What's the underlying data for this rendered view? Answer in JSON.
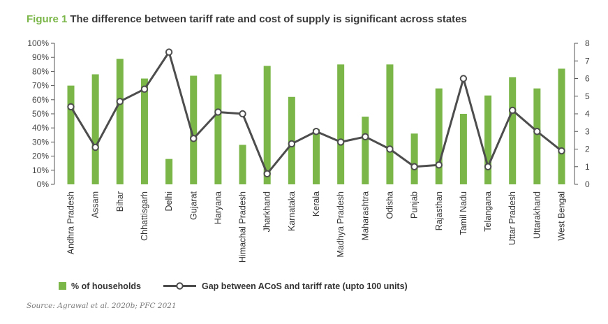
{
  "figure": {
    "label": "Figure 1",
    "title": "The difference between tariff rate and cost of supply is significant across states",
    "source": "Source: Agrawal et al. 2020b; PFC 2021"
  },
  "colors": {
    "bar": "#7ab648",
    "line": "#4d4d4d",
    "axis": "#555555",
    "accent": "#7ab648"
  },
  "chart_data": {
    "type": "bar+line",
    "title": "The difference between tariff rate and cost of supply is significant across states",
    "categories": [
      "Andhra Pradesh",
      "Assam",
      "Bihar",
      "Chhattisgarh",
      "Delhi",
      "Gujarat",
      "Haryana",
      "Himachal Pradesh",
      "Jharkhand",
      "Karnataka",
      "Kerala",
      "Madhya Pradesh",
      "Maharashtra",
      "Odisha",
      "Punjab",
      "Rajasthan",
      "Tamil Nadu",
      "Telangana",
      "Uttar Pradesh",
      "Uttarakhand",
      "West Bengal"
    ],
    "series": [
      {
        "name": "% of households",
        "type": "bar",
        "axis": "left",
        "values": [
          70,
          78,
          89,
          75,
          18,
          77,
          78,
          28,
          84,
          62,
          39,
          85,
          48,
          85,
          36,
          68,
          50,
          63,
          76,
          68,
          82
        ]
      },
      {
        "name": "Gap between ACoS and tariff rate (upto 100 units)",
        "type": "line",
        "axis": "right",
        "values": [
          4.4,
          2.1,
          4.7,
          5.4,
          7.5,
          2.6,
          4.1,
          4.0,
          0.6,
          2.3,
          3.0,
          2.4,
          2.7,
          2.0,
          1.0,
          1.1,
          6.0,
          1.0,
          4.2,
          3.0,
          1.9
        ]
      }
    ],
    "y_left": {
      "range": [
        0,
        100
      ],
      "ticks": [
        "0%",
        "10%",
        "20%",
        "30%",
        "40%",
        "50%",
        "60%",
        "70%",
        "80%",
        "90%",
        "100%"
      ]
    },
    "y_right": {
      "range": [
        0,
        8
      ],
      "ticks": [
        "0",
        "1",
        "2",
        "3",
        "4",
        "5",
        "6",
        "7",
        "8"
      ]
    },
    "legend": {
      "position": "bottom",
      "items": [
        "% of households",
        "Gap between ACoS and tariff rate (upto 100 units)"
      ]
    }
  }
}
